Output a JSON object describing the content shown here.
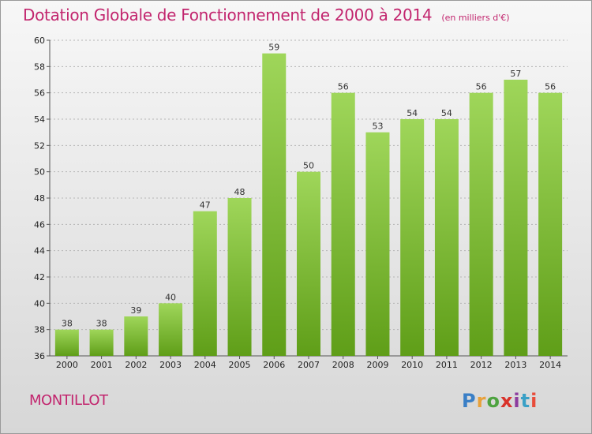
{
  "header": {
    "title": "Dotation Globale de Fonctionnement de 2000 à 2014",
    "unit": "(en milliers d'€)"
  },
  "footer": {
    "commune": "MONTILLOT",
    "logo_text": "Proxiti",
    "logo_colors": [
      "#3a7fc6",
      "#e8a13a",
      "#4ea340",
      "#d9322a",
      "#8c3c9e",
      "#3aa0c6",
      "#e84c3a"
    ]
  },
  "colors": {
    "bar_top": "#9fd65a",
    "bar_bottom": "#5f9e18",
    "title": "#c2256e"
  },
  "chart_data": {
    "type": "bar",
    "categories": [
      "2000",
      "2001",
      "2002",
      "2003",
      "2004",
      "2005",
      "2006",
      "2007",
      "2008",
      "2009",
      "2010",
      "2011",
      "2012",
      "2013",
      "2014"
    ],
    "values": [
      38,
      38,
      39,
      40,
      47,
      48,
      59,
      50,
      56,
      53,
      54,
      54,
      56,
      57,
      56
    ],
    "ylim": [
      36,
      60
    ],
    "yticks": [
      36,
      38,
      40,
      42,
      44,
      46,
      48,
      50,
      52,
      54,
      56,
      58,
      60
    ],
    "grid": "horizontal dashed",
    "legend": "none"
  }
}
